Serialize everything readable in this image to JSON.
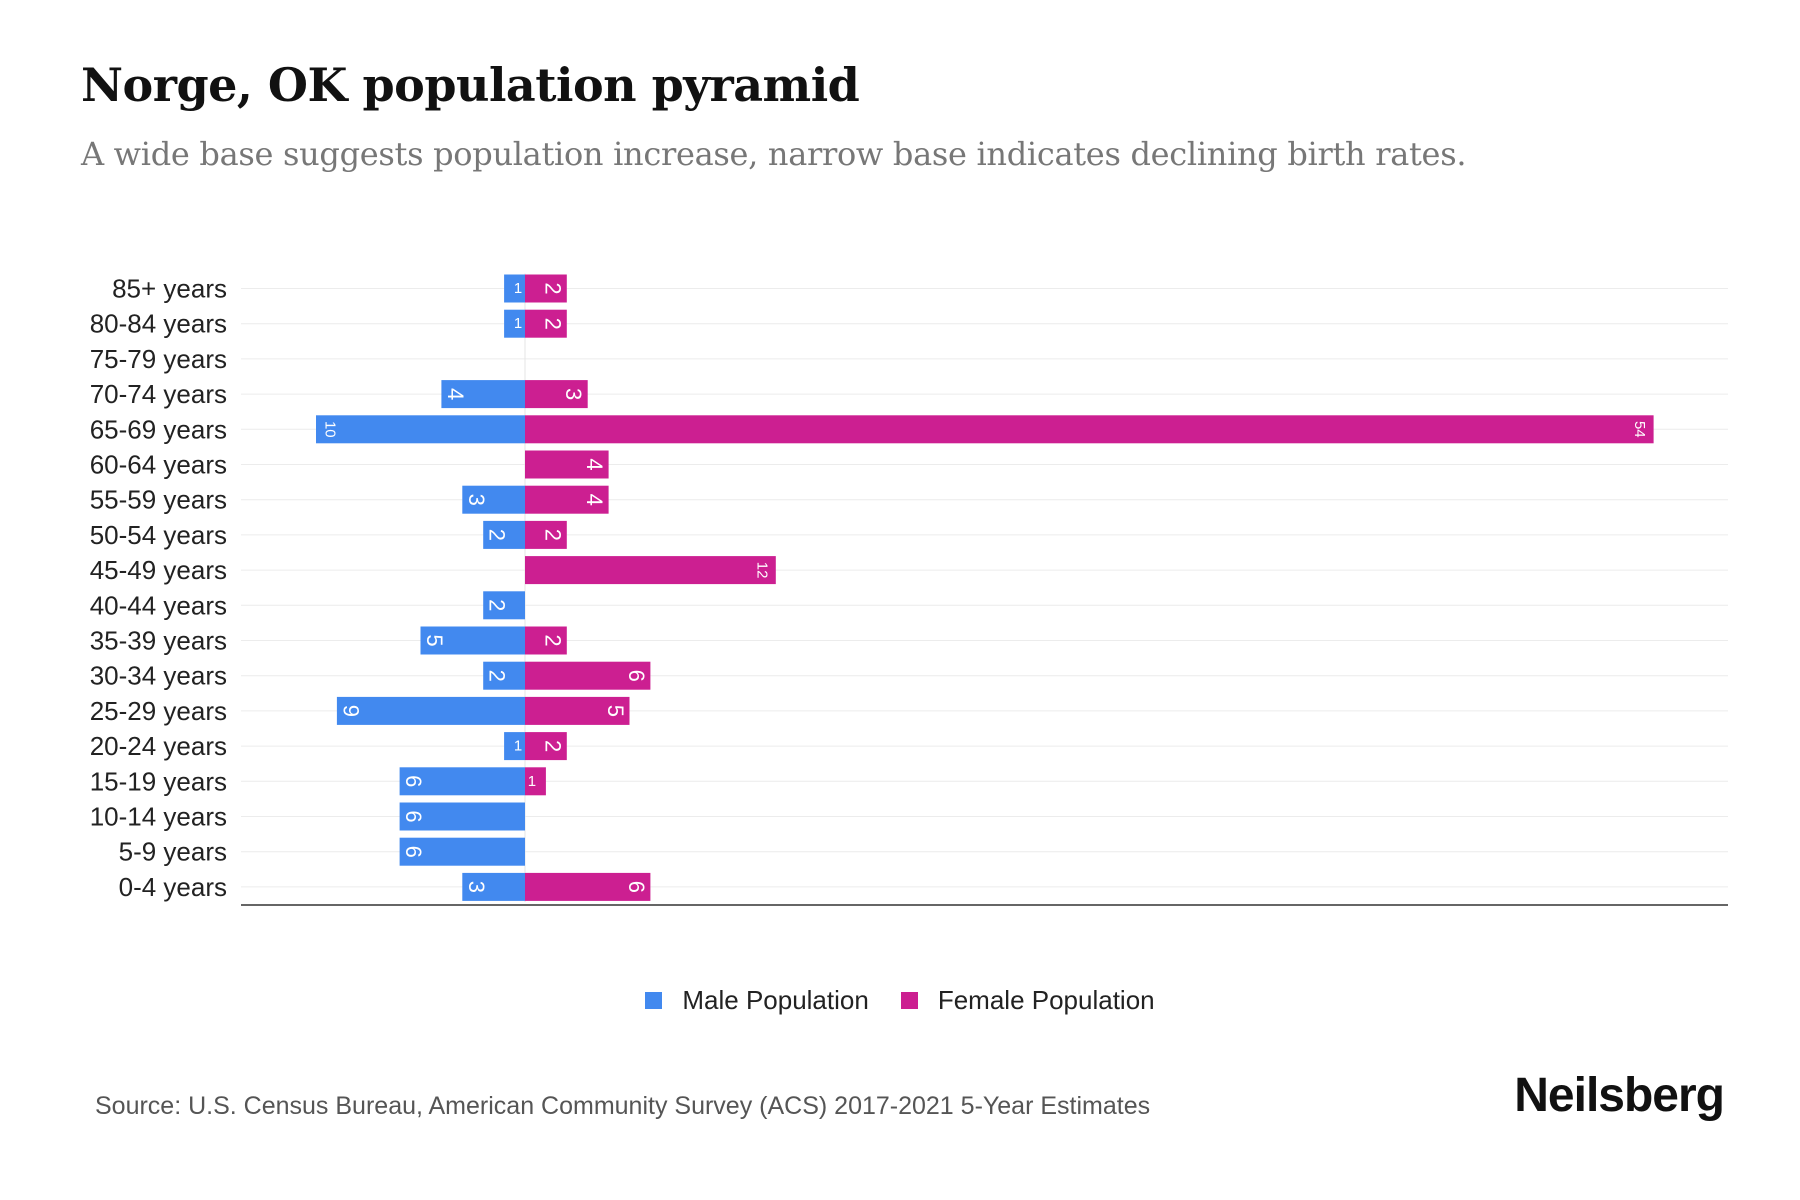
{
  "title": "Norge, OK population pyramid",
  "subtitle": "A wide base suggests population increase, narrow base indicates declining birth rates.",
  "source": "Source: U.S. Census Bureau, American Community Survey (ACS) 2017-2021 5-Year Estimates",
  "logo": "Neilsberg",
  "colors": {
    "male": "#4289ef",
    "female": "#cc1f91"
  },
  "chart_data": {
    "type": "bar",
    "orientation": "horizontal-pyramid",
    "categories": [
      "85+ years",
      "80-84 years",
      "75-79 years",
      "70-74 years",
      "65-69 years",
      "60-64 years",
      "55-59 years",
      "50-54 years",
      "45-49 years",
      "40-44 years",
      "35-39 years",
      "30-34 years",
      "25-29 years",
      "20-24 years",
      "15-19 years",
      "10-14 years",
      "5-9 years",
      "0-4 years"
    ],
    "series": [
      {
        "name": "Male Population",
        "values": [
          1,
          1,
          0,
          4,
          10,
          0,
          3,
          2,
          0,
          2,
          5,
          2,
          9,
          1,
          6,
          6,
          6,
          3
        ]
      },
      {
        "name": "Female Population",
        "values": [
          2,
          2,
          0,
          3,
          54,
          4,
          4,
          2,
          12,
          0,
          2,
          6,
          5,
          2,
          1,
          0,
          0,
          6
        ]
      }
    ],
    "legend_position": "bottom-center",
    "grid": true
  }
}
